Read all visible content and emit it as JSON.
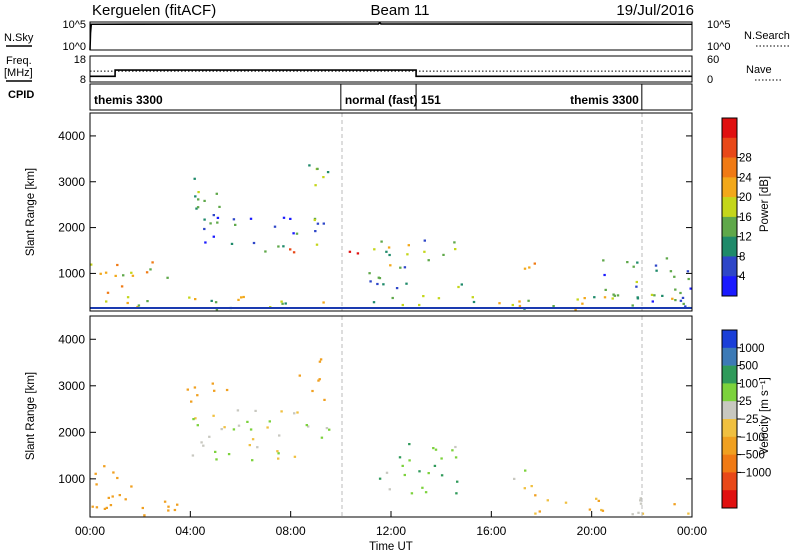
{
  "header": {
    "station": "Kerguelen (fitACF)",
    "beam": "Beam 11",
    "date": "19/Jul/2016"
  },
  "colors": {
    "frame": "#000000",
    "dashed_marker": "#bbbbbb"
  },
  "chart_data": [
    {
      "type": "line",
      "title": "",
      "left_label": "N.Sky",
      "right_label": "N.Search",
      "left_ticks": [
        "10^5",
        "10^0"
      ],
      "right_ticks": [
        "10^5",
        "10^0"
      ],
      "series": [
        {
          "x": [
            0,
            0.02,
            0.05,
            11.5,
            11.55,
            11.6,
            24
          ],
          "values": [
            0,
            0.6,
            0.92,
            0.93,
            0.97,
            0.93,
            0.92
          ]
        }
      ]
    },
    {
      "type": "line",
      "left_label": "Freq. [MHz]",
      "right_label": "Nave",
      "left_ticks": [
        "18",
        "8"
      ],
      "right_ticks": [
        "60",
        "0"
      ],
      "left_range": [
        8,
        18
      ],
      "series": [
        {
          "x": [
            0,
            1.0,
            1.0,
            13.0,
            13.0,
            24
          ],
          "values": [
            10.2,
            10.2,
            12.6,
            12.6,
            10.2,
            10.2
          ]
        },
        {
          "x": [
            0,
            24
          ],
          "values": [
            12.2,
            12.2
          ],
          "dotted": true
        }
      ]
    },
    {
      "type": "table",
      "label": "CPID",
      "segments": [
        {
          "name": "themis 3300",
          "start": 0,
          "end": 10
        },
        {
          "name": "normal (fast) 151",
          "start": 10,
          "end": 13
        },
        {
          "name": "themis 3300",
          "start": 13,
          "end": 22
        },
        {
          "name": "",
          "start": 22,
          "end": 24
        }
      ]
    },
    {
      "type": "heatmap",
      "ylabel": "Slant Range [km]",
      "yticks": [
        1000,
        2000,
        3000,
        4000
      ],
      "ylim": [
        180,
        4500
      ],
      "colorbar": {
        "label": "Power [dB]",
        "ticks": [
          "4",
          "8",
          "12",
          "16",
          "20",
          "24",
          "28"
        ],
        "colors": [
          "#1a1aff",
          "#2e46c8",
          "#1f8a6a",
          "#5fa84a",
          "#c4d61a",
          "#f2a81a",
          "#f07a14",
          "#e84818",
          "#e01010"
        ]
      },
      "echo_regions": [
        {
          "t": [
            0,
            1.8
          ],
          "r": [
            250,
            1300
          ],
          "level": 0.55
        },
        {
          "t": [
            1.5,
            3.2
          ],
          "r": [
            900,
            1400
          ],
          "level": 0.5
        },
        {
          "t": [
            3.8,
            5.2
          ],
          "r": [
            2000,
            3200
          ],
          "level": 0.3
        },
        {
          "t": [
            4.5,
            9.5
          ],
          "r": [
            1500,
            2300
          ],
          "level": 0.25
        },
        {
          "t": [
            7.0,
            8.5
          ],
          "r": [
            1400,
            1600
          ],
          "level": 0.95
        },
        {
          "t": [
            10.0,
            11.0
          ],
          "r": [
            1200,
            1500
          ],
          "level": 0.95
        },
        {
          "t": [
            8.5,
            9.5
          ],
          "r": [
            2800,
            3700
          ],
          "level": 0.4
        },
        {
          "t": [
            11.0,
            14.8
          ],
          "r": [
            700,
            1800
          ],
          "level": 0.35
        },
        {
          "t": [
            16.8,
            17.8
          ],
          "r": [
            900,
            1300
          ],
          "level": 0.5
        },
        {
          "t": [
            20.0,
            24.0
          ],
          "r": [
            300,
            1400
          ],
          "level": 0.3
        },
        {
          "t": [
            0,
            24
          ],
          "r": [
            200,
            550
          ],
          "level": 0.45
        }
      ]
    },
    {
      "type": "heatmap",
      "ylabel": "Slant Range [km]",
      "yticks": [
        1000,
        2000,
        3000,
        4000
      ],
      "ylim": [
        180,
        4500
      ],
      "xlabel": "Time UT",
      "xticks": [
        "00:00",
        "04:00",
        "08:00",
        "12:00",
        "16:00",
        "20:00",
        "00:00"
      ],
      "colorbar": {
        "label": "Velocity [m s⁻¹]",
        "ticks": [
          "1000",
          "500",
          "100",
          "25",
          "−25",
          "−100",
          "−500",
          "−1000"
        ],
        "colors": [
          "#1a3fd8",
          "#3c7ab6",
          "#2f9a5a",
          "#7cd23c",
          "#c8c8c0",
          "#f0c040",
          "#f0a020",
          "#f07a14",
          "#e84818",
          "#e01010"
        ]
      },
      "echo_regions": [
        {
          "t": [
            0,
            1.8
          ],
          "r": [
            250,
            1300
          ],
          "v": -300
        },
        {
          "t": [
            3.8,
            5.6
          ],
          "r": [
            2500,
            3100
          ],
          "v": -300
        },
        {
          "t": [
            4.0,
            9.5
          ],
          "r": [
            1400,
            2500
          ],
          "v": 0
        },
        {
          "t": [
            8.3,
            9.5
          ],
          "r": [
            2700,
            3700
          ],
          "v": -200
        },
        {
          "t": [
            11.5,
            14.8
          ],
          "r": [
            700,
            1800
          ],
          "v": 80
        },
        {
          "t": [
            16.8,
            18.0
          ],
          "r": [
            800,
            1300
          ],
          "v": 0
        },
        {
          "t": [
            17.5,
            24.0
          ],
          "r": [
            200,
            700
          ],
          "v": -80
        },
        {
          "t": [
            0,
            4
          ],
          "r": [
            200,
            600
          ],
          "v": -200
        }
      ]
    }
  ]
}
